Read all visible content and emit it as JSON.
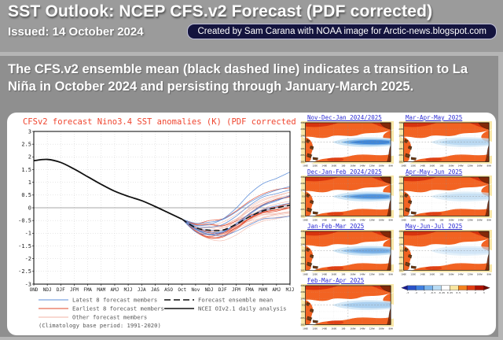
{
  "header": {
    "title": "SST Outlook: NCEP CFS.v2 Forecast (PDF corrected)",
    "issued": "Issued: 14 October 2024",
    "credit": "Created by Sam Carana with NOAA image for Arctic-news.blogspot.com"
  },
  "summary": {
    "text": "The CFS.v2 ensemble mean (black dashed line) indicates a transition to La Niña in October 2024 and persisting through January-March 2025."
  },
  "chart_data": {
    "type": "line",
    "title": "CFSv2 forecast Nino3.4 SST anomalies (K) (PDF corrected)",
    "title_color": "#ef4630",
    "categories": [
      "OND",
      "NDJ",
      "DJF",
      "JFM",
      "FMA",
      "MAM",
      "AMJ",
      "MJJ",
      "JJA",
      "JAS",
      "ASO",
      "Oct",
      "Nov",
      "NDJ",
      "DJF",
      "JFM",
      "FMA",
      "MAM",
      "AMJ",
      "MJJ"
    ],
    "ylim": [
      -3,
      3
    ],
    "ytick_step": 0.5,
    "grid": true,
    "series": [
      {
        "name": "NCEI OIv2.1 daily analysis",
        "style": "solid",
        "color": "#111111",
        "values": [
          1.85,
          1.9,
          1.78,
          1.52,
          1.22,
          0.92,
          0.65,
          0.45,
          0.28,
          0.05,
          -0.2,
          -0.45,
          null,
          null,
          null,
          null,
          null,
          null,
          null,
          null
        ]
      },
      {
        "name": "Forecast ensemble mean",
        "style": "dashed",
        "color": "#111111",
        "values": [
          null,
          null,
          null,
          null,
          null,
          null,
          null,
          null,
          null,
          null,
          null,
          -0.45,
          -0.78,
          -0.88,
          -0.88,
          -0.65,
          -0.35,
          -0.12,
          0.0,
          0.1
        ]
      }
    ],
    "members": {
      "start_index": 11,
      "start_value": -0.45,
      "dip_offset_range": [
        -0.35,
        0.3
      ],
      "end_offset_range": [
        -0.55,
        0.7
      ],
      "outlier_end_offset": 1.3,
      "groups": [
        {
          "name": "Latest 8 forecast members",
          "color": "#5b8dd9",
          "count": 8,
          "width": 0.8
        },
        {
          "name": "Earliest 8 forecast members",
          "color": "#e0482a",
          "count": 8,
          "width": 0.7
        },
        {
          "name": "Other forecast members",
          "color": "#f2b3a4",
          "count": 16,
          "width": 0.6
        }
      ]
    },
    "legend": [
      {
        "label": "Latest 8 forecast members",
        "style": "solid",
        "color": "#5b8dd9"
      },
      {
        "label": "Earliest 8 forecast members",
        "style": "solid",
        "color": "#e0482a"
      },
      {
        "label": "Other forecast members",
        "style": "solid",
        "color": "#f2b3a4"
      },
      {
        "label": "Forecast ensemble mean",
        "style": "dashed",
        "color": "#111111"
      },
      {
        "label": "NCEI OIv2.1 daily analysis",
        "style": "solid",
        "color": "#111111"
      }
    ],
    "legend_position": "bottom",
    "footnote": "(Climatology base period: 1991-2020)"
  },
  "maps": {
    "title_color": "#2b2bd4",
    "panels": [
      {
        "title": "Nov-Dec-Jan 2024/2025",
        "tongue": 1.0
      },
      {
        "title": "Mar-Apr-May 2025",
        "tongue": 0.35
      },
      {
        "title": "Dec-Jan-Feb 2024/2025",
        "tongue": 0.9
      },
      {
        "title": "Apr-May-Jun 2025",
        "tongue": 0.25
      },
      {
        "title": "Jan-Feb-Mar 2025",
        "tongue": 0.72
      },
      {
        "title": "May-Jun-Jul 2025",
        "tongue": 0.18
      },
      {
        "title": "Feb-Mar-Apr 2025",
        "tongue": 0.5
      }
    ],
    "lat_labels": [
      "30N",
      "20N",
      "10N",
      "EQ",
      "10S",
      "20S",
      "30S"
    ],
    "lon_labels": [
      "100E",
      "120E",
      "140E",
      "160E",
      "180",
      "160W",
      "140W",
      "120W",
      "100W",
      "80W"
    ],
    "colorbar": {
      "labels": [
        "-3",
        "-2",
        "-1",
        "-0.5",
        "-0.25",
        "0.25",
        "0.5",
        "1",
        "2",
        "3"
      ],
      "colors": [
        "#2a52c8",
        "#3f7fe0",
        "#7ab4ec",
        "#b9dcf4",
        "#ffffff",
        "#f8e6a0",
        "#f3821f",
        "#e23c12",
        "#ae1200"
      ],
      "arrow_left_color": "#1c1c90",
      "arrow_right_color": "#700a00"
    }
  },
  "colors": {
    "page_bg": "#9b9b9b",
    "band_bg": "#8f8f8f",
    "divider": "#b5b5b5",
    "panel_bg": "#ffffff",
    "badge_bg": "#14143e",
    "badge_border": "#bfbfd8",
    "map_warm": "#f26322",
    "map_cream": "#f8e7a8",
    "map_red": "#d22c0c"
  }
}
